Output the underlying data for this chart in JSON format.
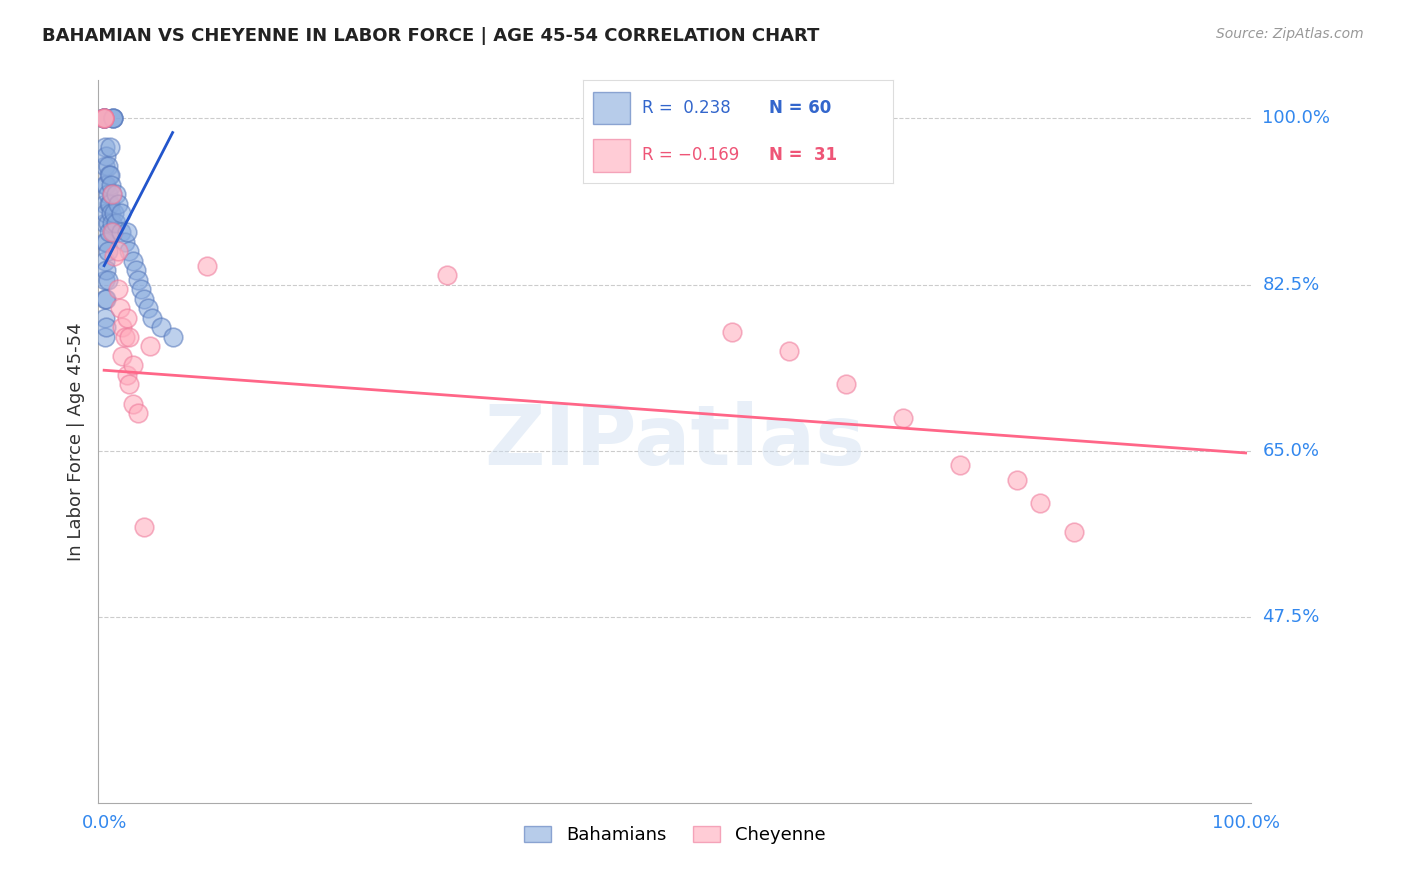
{
  "title": "BAHAMIAN VS CHEYENNE IN LABOR FORCE | AGE 45-54 CORRELATION CHART",
  "source": "Source: ZipAtlas.com",
  "ylabel": "In Labor Force | Age 45-54",
  "ytick_labels": [
    "100.0%",
    "82.5%",
    "65.0%",
    "47.5%"
  ],
  "ytick_values": [
    1.0,
    0.825,
    0.65,
    0.475
  ],
  "ylim": [
    0.28,
    1.04
  ],
  "xlim": [
    -0.005,
    1.005
  ],
  "blue_R": 0.238,
  "blue_N": 60,
  "pink_R": -0.169,
  "pink_N": 31,
  "blue_color": "#88AADD",
  "pink_color": "#FFAABB",
  "blue_edge_color": "#5577BB",
  "pink_edge_color": "#EE7799",
  "blue_trend_color": "#2255CC",
  "pink_trend_color": "#FF6688",
  "legend_label_blue": "Bahamians",
  "legend_label_pink": "Cheyenne",
  "watermark_text": "ZIPatlas",
  "background_color": "#ffffff",
  "blue_scatter_x": [
    0.0,
    0.0,
    0.0,
    0.0,
    0.0,
    0.008,
    0.008,
    0.008,
    0.001,
    0.001,
    0.001,
    0.001,
    0.001,
    0.001,
    0.001,
    0.001,
    0.001,
    0.001,
    0.001,
    0.002,
    0.002,
    0.002,
    0.002,
    0.002,
    0.002,
    0.002,
    0.003,
    0.003,
    0.003,
    0.003,
    0.003,
    0.004,
    0.004,
    0.004,
    0.005,
    0.005,
    0.005,
    0.006,
    0.006,
    0.007,
    0.007,
    0.008,
    0.009,
    0.01,
    0.01,
    0.012,
    0.015,
    0.015,
    0.018,
    0.02,
    0.022,
    0.025,
    0.028,
    0.03,
    0.032,
    0.035,
    0.038,
    0.042,
    0.05,
    0.06
  ],
  "blue_scatter_y": [
    1.0,
    1.0,
    1.0,
    1.0,
    1.0,
    1.0,
    1.0,
    1.0,
    0.97,
    0.95,
    0.93,
    0.91,
    0.89,
    0.87,
    0.85,
    0.83,
    0.81,
    0.79,
    0.77,
    0.96,
    0.93,
    0.9,
    0.87,
    0.84,
    0.81,
    0.78,
    0.95,
    0.92,
    0.89,
    0.86,
    0.83,
    0.94,
    0.91,
    0.88,
    0.97,
    0.94,
    0.91,
    0.93,
    0.9,
    0.92,
    0.89,
    0.88,
    0.9,
    0.92,
    0.89,
    0.91,
    0.9,
    0.88,
    0.87,
    0.88,
    0.86,
    0.85,
    0.84,
    0.83,
    0.82,
    0.81,
    0.8,
    0.79,
    0.78,
    0.77
  ],
  "pink_scatter_x": [
    0.0,
    0.0,
    0.0,
    0.007,
    0.007,
    0.009,
    0.012,
    0.012,
    0.014,
    0.016,
    0.016,
    0.018,
    0.02,
    0.02,
    0.022,
    0.022,
    0.025,
    0.025,
    0.03,
    0.035,
    0.04,
    0.09,
    0.3,
    0.55,
    0.6,
    0.65,
    0.7,
    0.75,
    0.8,
    0.82,
    0.85
  ],
  "pink_scatter_y": [
    1.0,
    1.0,
    1.0,
    0.92,
    0.88,
    0.855,
    0.86,
    0.82,
    0.8,
    0.78,
    0.75,
    0.77,
    0.79,
    0.73,
    0.77,
    0.72,
    0.74,
    0.7,
    0.69,
    0.57,
    0.76,
    0.845,
    0.835,
    0.775,
    0.755,
    0.72,
    0.685,
    0.635,
    0.62,
    0.595,
    0.565
  ],
  "blue_trend_x": [
    0.0,
    0.06
  ],
  "blue_trend_y": [
    0.845,
    0.985
  ],
  "pink_trend_x": [
    0.0,
    1.0
  ],
  "pink_trend_y": [
    0.735,
    0.648
  ]
}
